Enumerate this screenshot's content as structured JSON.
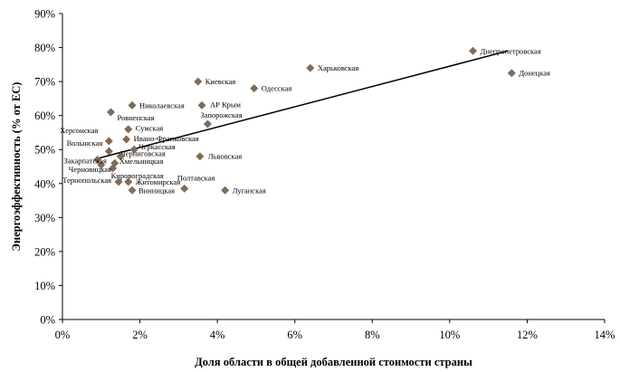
{
  "chart_data": {
    "type": "scatter",
    "xlabel": "Доля области в общей добавленной стоимости страны",
    "ylabel": "Энергоэффективность (% от ЕС)",
    "xlim": [
      0,
      14
    ],
    "ylim": [
      0,
      90
    ],
    "x_ticks": [
      "0%",
      "2%",
      "4%",
      "6%",
      "8%",
      "10%",
      "12%",
      "14%"
    ],
    "y_ticks": [
      "0%",
      "10%",
      "20%",
      "30%",
      "40%",
      "50%",
      "60%",
      "70%",
      "80%",
      "90%"
    ],
    "grid": false,
    "marker_color": "#7f6b5a",
    "line_color": "#000000",
    "points": [
      {
        "label": "Днепропетровская",
        "x": 10.6,
        "y": 79
      },
      {
        "label": "Донецкая",
        "x": 11.6,
        "y": 72.5
      },
      {
        "label": "Харьковская",
        "x": 6.4,
        "y": 74
      },
      {
        "label": "Киевская",
        "x": 3.5,
        "y": 70
      },
      {
        "label": "Одесская",
        "x": 4.95,
        "y": 68
      },
      {
        "label": "АР Крым",
        "x": 3.6,
        "y": 63
      },
      {
        "label": "Николаевская",
        "x": 1.8,
        "y": 63
      },
      {
        "label": "Ровненская",
        "x": 1.25,
        "y": 61
      },
      {
        "label": "Запорожская",
        "x": 3.75,
        "y": 57.5
      },
      {
        "label": "Сумская",
        "x": 1.7,
        "y": 56
      },
      {
        "label": "Херсонская",
        "x": 1.2,
        "y": 52.5
      },
      {
        "label": "Ивано-Франковская",
        "x": 1.65,
        "y": 53
      },
      {
        "label": "Волынская",
        "x": 1.2,
        "y": 49.5
      },
      {
        "label": "Черкасская",
        "x": 1.85,
        "y": 50
      },
      {
        "label": "Черниговская",
        "x": 1.5,
        "y": 48
      },
      {
        "label": "Закарпатская",
        "x": 0.9,
        "y": 47
      },
      {
        "label": "Хмельницкая",
        "x": 1.35,
        "y": 46
      },
      {
        "label": "Черновицкая",
        "x": 1.0,
        "y": 45.5
      },
      {
        "label": "Кировоградская",
        "x": 1.3,
        "y": 44.5
      },
      {
        "label": "Львовская",
        "x": 3.55,
        "y": 48
      },
      {
        "label": "Тернопольская",
        "x": 1.45,
        "y": 40.5
      },
      {
        "label": "Житомирская",
        "x": 1.7,
        "y": 40.5
      },
      {
        "label": "Винницкая",
        "x": 1.8,
        "y": 38
      },
      {
        "label": "Полтавская",
        "x": 3.15,
        "y": 38.5
      },
      {
        "label": "Луганская",
        "x": 4.2,
        "y": 38
      }
    ],
    "trendline": {
      "x": [
        0.85,
        11.5
      ],
      "y": [
        47.2,
        79
      ]
    }
  }
}
